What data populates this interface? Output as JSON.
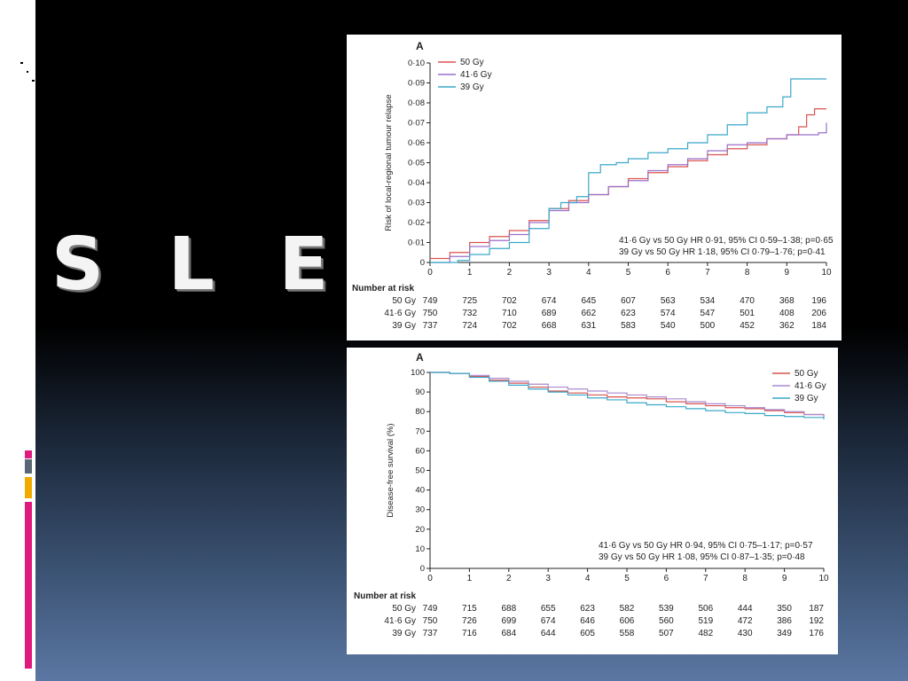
{
  "slide": {
    "title": "S L E",
    "colors": {
      "background_top": "#000000",
      "background_bottom": "#5b77a3",
      "accent_pink": "#e0197d",
      "accent_gray": "#5a6675",
      "accent_gold": "#f2a900"
    }
  },
  "chart_data": [
    {
      "type": "line",
      "panel_label": "A",
      "title": "",
      "xlabel": "",
      "ylabel": "Risk of local-regional tumour relapse",
      "xlim": [
        0,
        10
      ],
      "ylim": [
        0,
        0.1
      ],
      "x_ticks": [
        "0",
        "1",
        "2",
        "3",
        "4",
        "5",
        "6",
        "7",
        "8",
        "9",
        "10"
      ],
      "y_ticks": [
        "0",
        "0·01",
        "0·02",
        "0·03",
        "0·04",
        "0·05",
        "0·06",
        "0·07",
        "0·08",
        "0·09",
        "0·10"
      ],
      "legend": "top-left",
      "series": [
        {
          "name": "50 Gy",
          "color": "#d9534f",
          "x": [
            0,
            0.5,
            1,
            1.5,
            2,
            2.5,
            3,
            3.5,
            4,
            4.5,
            5,
            5.5,
            6,
            6.5,
            7,
            7.5,
            8,
            8.5,
            9,
            9.3,
            9.5,
            9.7,
            10
          ],
          "y": [
            0.002,
            0.005,
            0.01,
            0.013,
            0.016,
            0.021,
            0.027,
            0.031,
            0.034,
            0.038,
            0.042,
            0.045,
            0.048,
            0.051,
            0.054,
            0.057,
            0.059,
            0.062,
            0.064,
            0.068,
            0.074,
            0.077,
            0.077
          ]
        },
        {
          "name": "41·6 Gy",
          "color": "#9b6fc9",
          "x": [
            0,
            0.5,
            1,
            1.5,
            2,
            2.5,
            3,
            3.5,
            4,
            4.5,
            5,
            5.5,
            6,
            6.5,
            7,
            7.5,
            8,
            8.5,
            9,
            9.5,
            9.8,
            10
          ],
          "y": [
            0,
            0.003,
            0.008,
            0.011,
            0.014,
            0.02,
            0.026,
            0.03,
            0.034,
            0.038,
            0.041,
            0.046,
            0.049,
            0.052,
            0.056,
            0.059,
            0.06,
            0.062,
            0.064,
            0.064,
            0.065,
            0.07
          ]
        },
        {
          "name": "39 Gy",
          "color": "#3aa8c9",
          "x": [
            0,
            0.7,
            1,
            1.5,
            2,
            2.5,
            3,
            3.3,
            3.7,
            4,
            4.3,
            4.7,
            5,
            5.5,
            6,
            6.5,
            7,
            7.5,
            8,
            8.5,
            8.9,
            9.1,
            9.5,
            10
          ],
          "y": [
            0,
            0.001,
            0.004,
            0.007,
            0.01,
            0.017,
            0.027,
            0.03,
            0.033,
            0.045,
            0.049,
            0.05,
            0.052,
            0.055,
            0.057,
            0.06,
            0.064,
            0.069,
            0.075,
            0.078,
            0.083,
            0.092,
            0.092,
            0.092
          ]
        }
      ],
      "annotations": [
        "41·6 Gy vs 50 Gy HR 0·91, 95% CI 0·59–1·38; p=0·65",
        "39 Gy vs 50 Gy HR 1·18, 95% CI 0·79–1·76; p=0·41"
      ],
      "risk_table": {
        "header": "Number at risk",
        "rows": [
          {
            "label": "50 Gy",
            "values": [
              "749",
              "725",
              "702",
              "674",
              "645",
              "607",
              "563",
              "534",
              "470",
              "368",
              "196"
            ]
          },
          {
            "label": "41·6 Gy",
            "values": [
              "750",
              "732",
              "710",
              "689",
              "662",
              "623",
              "574",
              "547",
              "501",
              "408",
              "206"
            ]
          },
          {
            "label": "39 Gy",
            "values": [
              "737",
              "724",
              "702",
              "668",
              "631",
              "583",
              "540",
              "500",
              "452",
              "362",
              "184"
            ]
          }
        ]
      }
    },
    {
      "type": "line",
      "panel_label": "A",
      "title": "",
      "xlabel": "",
      "ylabel": "Disease-free survival (%)",
      "xlim": [
        0,
        10
      ],
      "ylim": [
        0,
        100
      ],
      "x_ticks": [
        "0",
        "1",
        "2",
        "3",
        "4",
        "5",
        "6",
        "7",
        "8",
        "9",
        "10"
      ],
      "y_ticks": [
        "0",
        "10",
        "20",
        "30",
        "40",
        "50",
        "60",
        "70",
        "80",
        "90",
        "100"
      ],
      "legend": "top-right",
      "series": [
        {
          "name": "50 Gy",
          "color": "#d9534f",
          "x": [
            0,
            0.5,
            1,
            1.5,
            2,
            2.5,
            3,
            3.5,
            4,
            4.5,
            5,
            5.5,
            6,
            6.5,
            7,
            7.5,
            8,
            8.5,
            9,
            9.5,
            10
          ],
          "y": [
            100,
            99.5,
            98,
            96,
            94.5,
            92.5,
            90.5,
            89.5,
            88.5,
            87.5,
            87,
            86.5,
            85,
            84,
            83,
            82,
            81.5,
            80.5,
            79.5,
            78.5,
            77
          ]
        },
        {
          "name": "41·6 Gy",
          "color": "#a98bd0",
          "x": [
            0,
            0.5,
            1,
            1.5,
            2,
            2.5,
            3,
            3.5,
            4,
            4.5,
            5,
            5.5,
            6,
            6.5,
            7,
            7.5,
            8,
            8.5,
            9,
            9.5,
            10
          ],
          "y": [
            100,
            99.5,
            98.5,
            97,
            95.5,
            94,
            92.5,
            91.5,
            90.5,
            89.5,
            88.5,
            87.5,
            86.5,
            85,
            84,
            83,
            82,
            81,
            80,
            78.5,
            77
          ]
        },
        {
          "name": "39 Gy",
          "color": "#3aa8c9",
          "x": [
            0,
            0.5,
            1,
            1.5,
            2,
            2.5,
            3,
            3.5,
            4,
            4.5,
            5,
            5.5,
            6,
            6.5,
            7,
            7.5,
            8,
            8.5,
            9,
            9.5,
            10
          ],
          "y": [
            100,
            99.5,
            97.5,
            95.5,
            93.5,
            91.5,
            90,
            88.5,
            87,
            86,
            84.5,
            83.5,
            82.5,
            81.5,
            80.5,
            79.5,
            79,
            78,
            77.5,
            77,
            76
          ]
        }
      ],
      "annotations": [
        "41·6 Gy vs 50 Gy HR 0·94, 95% CI 0·75–1·17; p=0·57",
        "39 Gy vs 50 Gy HR 1·08, 95% CI 0·87–1·35; p=0·48"
      ],
      "risk_table": {
        "header": "Number at risk",
        "rows": [
          {
            "label": "50 Gy",
            "values": [
              "749",
              "715",
              "688",
              "655",
              "623",
              "582",
              "539",
              "506",
              "444",
              "350",
              "187"
            ]
          },
          {
            "label": "41·6 Gy",
            "values": [
              "750",
              "726",
              "699",
              "674",
              "646",
              "606",
              "560",
              "519",
              "472",
              "386",
              "192"
            ]
          },
          {
            "label": "39 Gy",
            "values": [
              "737",
              "716",
              "684",
              "644",
              "605",
              "558",
              "507",
              "482",
              "430",
              "349",
              "176"
            ]
          }
        ]
      }
    }
  ]
}
